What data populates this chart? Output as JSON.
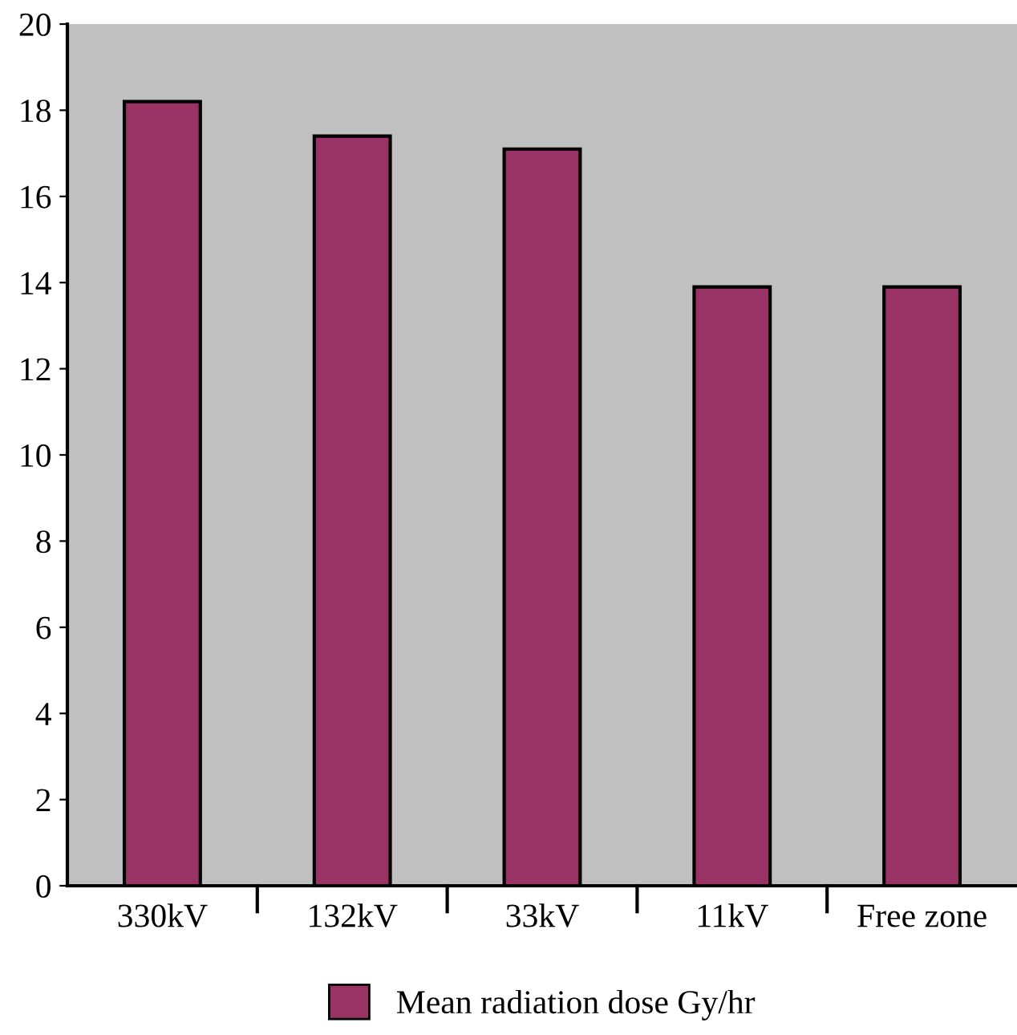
{
  "chart_data": {
    "type": "bar",
    "categories": [
      "330kV",
      "132kV",
      "33kV",
      "11kV",
      "Free zone"
    ],
    "series": [
      {
        "name": "Mean radiation dose Gy/hr",
        "color": "#993366",
        "values": [
          18.2,
          17.4,
          17.1,
          13.9,
          13.9
        ]
      }
    ],
    "ylim": [
      0,
      20
    ],
    "yticks": [
      0,
      2,
      4,
      6,
      8,
      10,
      12,
      14,
      16,
      18,
      20
    ],
    "grid": false,
    "legend": "bottom"
  }
}
